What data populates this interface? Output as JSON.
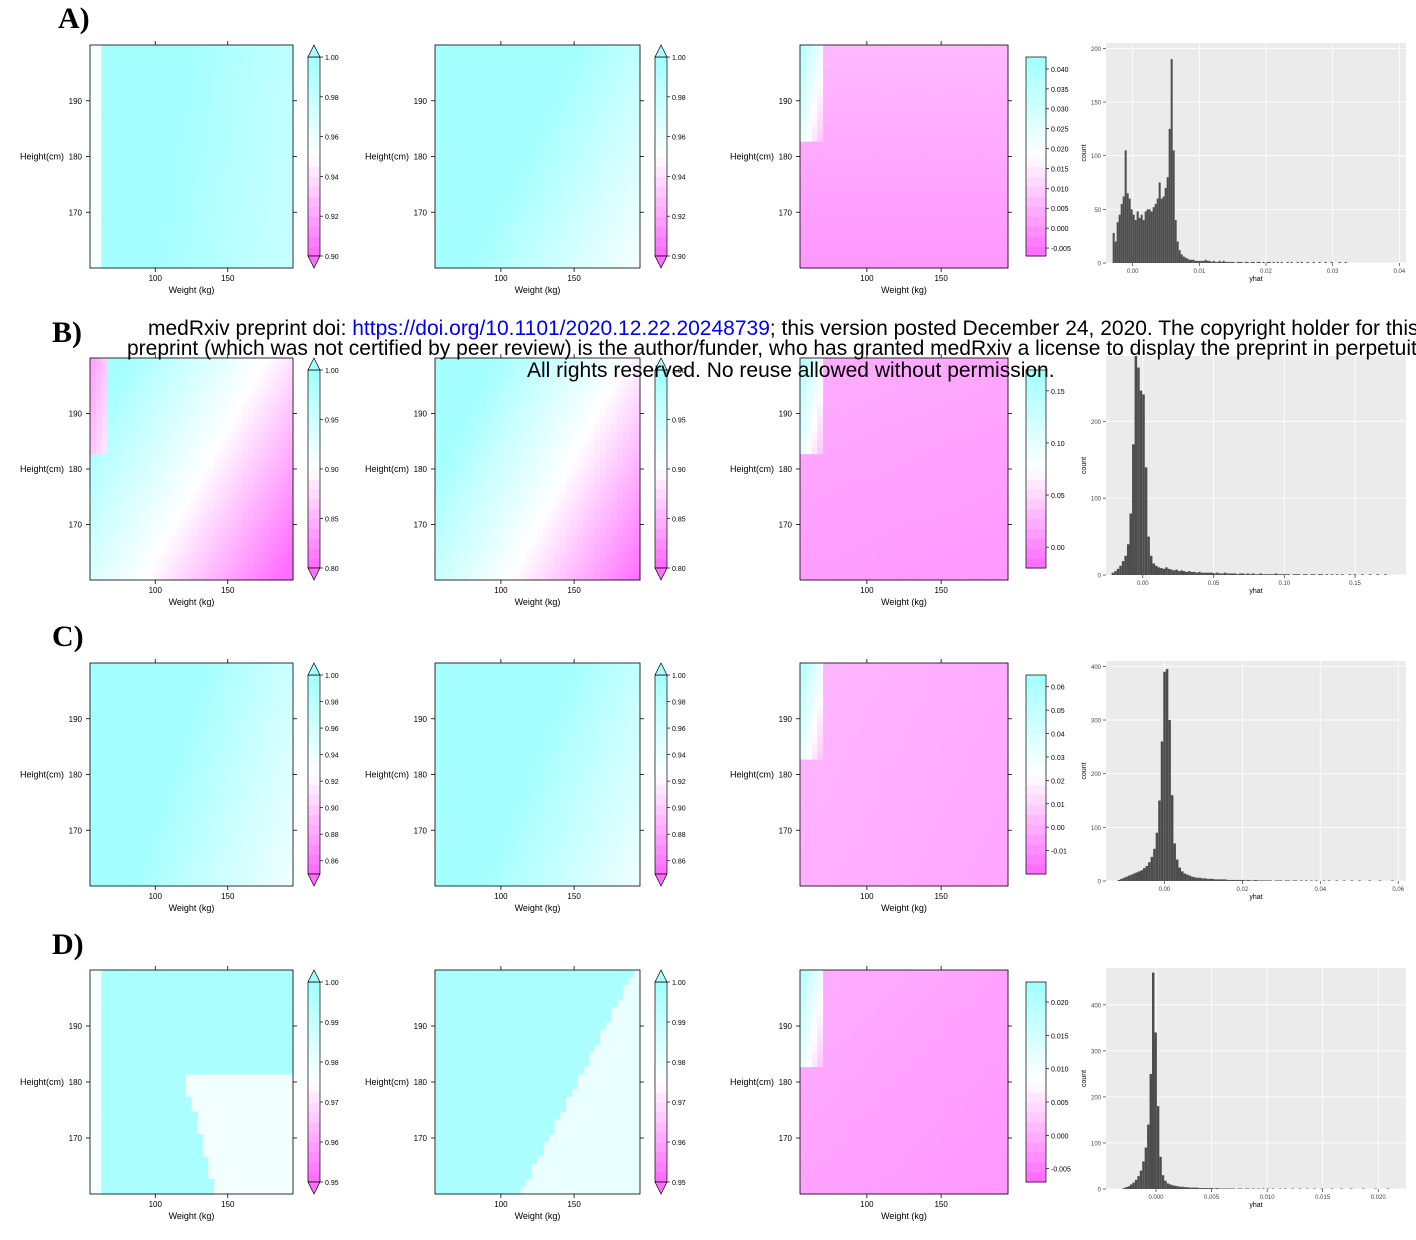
{
  "panel_labels": [
    "A)",
    "B)",
    "C)",
    "D)"
  ],
  "notice": {
    "line1_pre": "medRxiv preprint doi: ",
    "line1_link": "https://doi.org/10.1101/2020.12.22.20248739",
    "line1_post": "; this version posted December 24, 2020. The copyright holder for this",
    "line2": "preprint (which was not certified by peer review) is the author/funder, who has granted medRxiv a license to display the preprint in perpetuity.",
    "line3": "All rights reserved. No reuse allowed without permission."
  },
  "colors": {
    "cyan": "#a6ffff",
    "white": "#ffffff",
    "magenta": "#ff6eff",
    "histogram_bar": "#4d4d4d",
    "histogram_panel": "#ebebeb"
  },
  "chart_data": [
    {
      "row": "A",
      "type": "heatmap",
      "xlabel": "Weight (kg)",
      "ylabel": "Height(cm)",
      "x_ticks": [
        100,
        150
      ],
      "y_ticks": [
        170,
        180,
        190
      ],
      "xlim": [
        55,
        195
      ],
      "ylim": [
        160,
        200
      ],
      "colorkey_ticks": [
        "0.90",
        "0.92",
        "0.94",
        "0.96",
        "0.98",
        "1.00"
      ],
      "zlim": [
        0.9,
        1.0
      ],
      "gradient": {
        "base": 0.975,
        "wx": -0.3,
        "wy": 0.05,
        "left_white_strip": true
      }
    },
    {
      "row": "A",
      "type": "heatmap",
      "xlabel": "Weight (kg)",
      "ylabel": "Height(cm)",
      "x_ticks": [
        100,
        150
      ],
      "y_ticks": [
        170,
        180,
        190
      ],
      "xlim": [
        55,
        195
      ],
      "ylim": [
        160,
        200
      ],
      "colorkey_ticks": [
        "0.90",
        "0.92",
        "0.94",
        "0.96",
        "0.98",
        "1.00"
      ],
      "zlim": [
        0.9,
        1.0
      ],
      "gradient": {
        "base": 0.97,
        "wx": -0.55,
        "wy": 0.3
      }
    },
    {
      "row": "A",
      "type": "heatmap",
      "xlabel": "Weight (kg)",
      "ylabel": "Height(cm)",
      "x_ticks": [
        100,
        150
      ],
      "y_ticks": [
        170,
        180,
        190
      ],
      "xlim": [
        55,
        195
      ],
      "ylim": [
        160,
        200
      ],
      "colorkey_ticks": [
        "-0.005",
        "0.000",
        "0.005",
        "0.010",
        "0.015",
        "0.020",
        "0.025",
        "0.030",
        "0.035",
        "0.040"
      ],
      "zlim": [
        -0.007,
        0.043
      ],
      "gradient": {
        "base": 0.2,
        "wx": 0.0,
        "wy": 0.12,
        "corner_cyan": true
      }
    },
    {
      "row": "A",
      "type": "histogram",
      "xlabel": "yhat",
      "ylabel": "count",
      "x_ticks": [
        "0.00",
        "0.01",
        "0.02",
        "0.03",
        "0.04"
      ],
      "y_ticks": [
        0,
        50,
        100,
        150,
        200
      ],
      "xlim": [
        -0.004,
        0.041
      ],
      "ylim": [
        0,
        205
      ],
      "bins": {
        "start": -0.003,
        "width": 0.0003,
        "counts": [
          28,
          20,
          38,
          45,
          55,
          62,
          105,
          65,
          60,
          50,
          45,
          40,
          48,
          42,
          45,
          40,
          48,
          50,
          50,
          48,
          52,
          55,
          60,
          75,
          60,
          62,
          70,
          80,
          125,
          190,
          105,
          40,
          20,
          12,
          8,
          6,
          5,
          4,
          3,
          3,
          3,
          2,
          2,
          2,
          2,
          2,
          3,
          2,
          2,
          1,
          2,
          1,
          1,
          2,
          1,
          2,
          1,
          1,
          1,
          1,
          1,
          0,
          1,
          1,
          1,
          0,
          1,
          1,
          0,
          1,
          1,
          0,
          1,
          1,
          0,
          1,
          0,
          1,
          1,
          0,
          1,
          0,
          1,
          0,
          1,
          0,
          0,
          1,
          0,
          1,
          0,
          0,
          1,
          0,
          1,
          0,
          0,
          1,
          0,
          0,
          1,
          0,
          0,
          1,
          0,
          0,
          1,
          0,
          0,
          1,
          0,
          0,
          0,
          1,
          0,
          0,
          1
        ]
      }
    },
    {
      "row": "B",
      "type": "heatmap",
      "xlabel": "Weight (kg)",
      "ylabel": "Height(cm)",
      "x_ticks": [
        100,
        150
      ],
      "y_ticks": [
        170,
        180,
        190
      ],
      "xlim": [
        55,
        195
      ],
      "ylim": [
        160,
        200
      ],
      "colorkey_ticks": [
        "0.80",
        "0.85",
        "0.90",
        "0.95",
        "1.00"
      ],
      "zlim": [
        0.8,
        1.0
      ],
      "gradient": {
        "base": 0.55,
        "wx": -0.75,
        "wy": 0.45,
        "top_left_magenta": true
      }
    },
    {
      "row": "B",
      "type": "heatmap",
      "xlabel": "Weight (kg)",
      "ylabel": "Height(cm)",
      "x_ticks": [
        100,
        150
      ],
      "y_ticks": [
        170,
        180,
        190
      ],
      "xlim": [
        55,
        195
      ],
      "ylim": [
        160,
        200
      ],
      "colorkey_ticks": [
        "0.80",
        "0.85",
        "0.90",
        "0.95",
        "1.00"
      ],
      "zlim": [
        0.8,
        1.0
      ],
      "gradient": {
        "base": 0.62,
        "wx": -0.8,
        "wy": 0.45
      }
    },
    {
      "row": "B",
      "type": "heatmap",
      "xlabel": "Weight (kg)",
      "ylabel": "Height(cm)",
      "x_ticks": [
        100,
        150
      ],
      "y_ticks": [
        170,
        180,
        190
      ],
      "xlim": [
        55,
        195
      ],
      "ylim": [
        160,
        200
      ],
      "colorkey_ticks": [
        "0.00",
        "0.05",
        "0.10",
        "0.15"
      ],
      "zlim": [
        -0.02,
        0.17
      ],
      "gradient": {
        "base": 0.18,
        "wx": -0.02,
        "wy": 0.05,
        "corner_cyan": true
      }
    },
    {
      "row": "B",
      "type": "histogram",
      "xlabel": "yhat",
      "ylabel": "count",
      "x_ticks": [
        "0.00",
        "0.05",
        "0.10",
        "0.15"
      ],
      "y_ticks": [
        0,
        100,
        200
      ],
      "xlim": [
        -0.026,
        0.186
      ],
      "ylim": [
        0,
        285
      ],
      "bins": {
        "start": -0.022,
        "width": 0.0018,
        "counts": [
          3,
          5,
          8,
          12,
          18,
          25,
          40,
          80,
          170,
          290,
          270,
          240,
          235,
          140,
          50,
          25,
          15,
          12,
          10,
          9,
          8,
          10,
          8,
          7,
          6,
          7,
          5,
          6,
          5,
          4,
          5,
          4,
          4,
          3,
          4,
          3,
          3,
          3,
          3,
          3,
          2,
          3,
          2,
          2,
          3,
          2,
          2,
          2,
          2,
          1,
          2,
          2,
          1,
          2,
          1,
          2,
          1,
          1,
          2,
          1,
          1,
          1,
          1,
          1,
          2,
          1,
          1,
          1,
          1,
          1,
          0,
          1,
          1,
          1,
          0,
          1,
          1,
          0,
          1,
          1,
          0,
          1,
          1,
          0,
          1,
          0,
          1,
          0,
          1,
          0,
          1,
          0,
          0,
          1,
          0,
          1,
          0,
          0,
          1,
          0,
          0,
          1,
          0,
          0,
          1,
          0,
          0,
          1
        ]
      }
    },
    {
      "row": "C",
      "type": "heatmap",
      "xlabel": "Weight (kg)",
      "ylabel": "Height(cm)",
      "x_ticks": [
        100,
        150
      ],
      "y_ticks": [
        170,
        180,
        190
      ],
      "xlim": [
        55,
        195
      ],
      "ylim": [
        160,
        200
      ],
      "colorkey_ticks": [
        "0.86",
        "0.88",
        "0.90",
        "0.92",
        "0.94",
        "0.96",
        "0.98",
        "1.00"
      ],
      "zlim": [
        0.85,
        1.0
      ],
      "gradient": {
        "base": 0.95,
        "wx": -0.55,
        "wy": 0.2
      }
    },
    {
      "row": "C",
      "type": "heatmap",
      "xlabel": "Weight (kg)",
      "ylabel": "Height(cm)",
      "x_ticks": [
        100,
        150
      ],
      "y_ticks": [
        170,
        180,
        190
      ],
      "xlim": [
        55,
        195
      ],
      "ylim": [
        160,
        200
      ],
      "colorkey_ticks": [
        "0.86",
        "0.88",
        "0.90",
        "0.92",
        "0.94",
        "0.96",
        "0.98",
        "1.00"
      ],
      "zlim": [
        0.85,
        1.0
      ],
      "gradient": {
        "base": 0.98,
        "wx": -0.55,
        "wy": 0.25
      }
    },
    {
      "row": "C",
      "type": "heatmap",
      "xlabel": "Weight (kg)",
      "ylabel": "Height(cm)",
      "x_ticks": [
        100,
        150
      ],
      "y_ticks": [
        170,
        180,
        190
      ],
      "xlim": [
        55,
        195
      ],
      "ylim": [
        160,
        200
      ],
      "colorkey_ticks": [
        "-0.01",
        "0.00",
        "0.01",
        "0.02",
        "0.03",
        "0.04",
        "0.05",
        "0.06"
      ],
      "zlim": [
        -0.02,
        0.065
      ],
      "gradient": {
        "base": 0.22,
        "wx": -0.04,
        "wy": 0.02,
        "corner_cyan": true
      }
    },
    {
      "row": "C",
      "type": "histogram",
      "xlabel": "yhat",
      "ylabel": "count",
      "x_ticks": [
        "0.00",
        "0.02",
        "0.04",
        "0.06"
      ],
      "y_ticks": [
        0,
        100,
        200,
        300,
        400
      ],
      "xlim": [
        -0.015,
        0.062
      ],
      "ylim": [
        0,
        410
      ],
      "bins": {
        "start": -0.012,
        "width": 0.00065,
        "counts": [
          2,
          4,
          6,
          8,
          10,
          12,
          14,
          16,
          18,
          20,
          24,
          28,
          35,
          45,
          60,
          90,
          150,
          260,
          390,
          395,
          300,
          160,
          70,
          40,
          25,
          18,
          14,
          12,
          10,
          8,
          7,
          6,
          6,
          5,
          5,
          4,
          4,
          4,
          3,
          3,
          3,
          3,
          3,
          2,
          2,
          2,
          2,
          2,
          2,
          2,
          1,
          2,
          1,
          1,
          2,
          1,
          1,
          1,
          1,
          1,
          1,
          0,
          1,
          1,
          1,
          0,
          1,
          1,
          0,
          1,
          1,
          0,
          1,
          0,
          1,
          0,
          1,
          0,
          1,
          0,
          0,
          1,
          0,
          1,
          0,
          0,
          1,
          0,
          0,
          1,
          0,
          0,
          1,
          0,
          0,
          1,
          0,
          0,
          0,
          1,
          0,
          0,
          0,
          1,
          0,
          0,
          0,
          0,
          1
        ]
      }
    },
    {
      "row": "D",
      "type": "heatmap",
      "xlabel": "Weight (kg)",
      "ylabel": "Height(cm)",
      "x_ticks": [
        100,
        150
      ],
      "y_ticks": [
        170,
        180,
        190
      ],
      "xlim": [
        55,
        195
      ],
      "ylim": [
        160,
        200
      ],
      "colorkey_ticks": [
        "0.95",
        "0.96",
        "0.97",
        "0.98",
        "0.99",
        "1.00"
      ],
      "zlim": [
        0.95,
        1.0
      ],
      "gradient": {
        "base": 0.97,
        "wx": 0.0,
        "wy": 0.0,
        "step_region": "bottom-right",
        "left_white_strip": true
      }
    },
    {
      "row": "D",
      "type": "heatmap",
      "xlabel": "Weight (kg)",
      "ylabel": "Height(cm)",
      "x_ticks": [
        100,
        150
      ],
      "y_ticks": [
        170,
        180,
        190
      ],
      "xlim": [
        55,
        195
      ],
      "ylim": [
        160,
        200
      ],
      "colorkey_ticks": [
        "0.95",
        "0.96",
        "0.97",
        "0.98",
        "0.99",
        "1.00"
      ],
      "zlim": [
        0.95,
        1.0
      ],
      "gradient": {
        "base": 0.97,
        "wx": 0.0,
        "wy": 0.0,
        "step_region": "diagonal"
      }
    },
    {
      "row": "D",
      "type": "heatmap",
      "xlabel": "Weight (kg)",
      "ylabel": "Height(cm)",
      "x_ticks": [
        100,
        150
      ],
      "y_ticks": [
        170,
        180,
        190
      ],
      "xlim": [
        55,
        195
      ],
      "ylim": [
        160,
        200
      ],
      "colorkey_ticks": [
        "-0.005",
        "0.000",
        "0.005",
        "0.010",
        "0.015",
        "0.020"
      ],
      "zlim": [
        -0.007,
        0.023
      ],
      "gradient": {
        "base": 0.18,
        "wx": -0.04,
        "wy": 0.04,
        "corner_cyan": true
      }
    },
    {
      "row": "D",
      "type": "histogram",
      "xlabel": "yhat",
      "ylabel": "count",
      "x_ticks": [
        "0.000",
        "0.005",
        "0.010",
        "0.015",
        "0.020"
      ],
      "y_ticks": [
        0,
        100,
        200,
        300,
        400
      ],
      "xlim": [
        -0.0045,
        0.0225
      ],
      "ylim": [
        0,
        480
      ],
      "bins": {
        "start": -0.003,
        "width": 0.00022,
        "counts": [
          2,
          4,
          6,
          10,
          14,
          20,
          28,
          40,
          60,
          90,
          140,
          250,
          470,
          340,
          180,
          70,
          30,
          18,
          12,
          10,
          8,
          7,
          6,
          5,
          5,
          4,
          4,
          3,
          3,
          3,
          3,
          2,
          2,
          2,
          2,
          2,
          2,
          1,
          2,
          1,
          1,
          1,
          1,
          1,
          1,
          1,
          0,
          1,
          1,
          0,
          1,
          1,
          0,
          1,
          0,
          1,
          0,
          1,
          0,
          1,
          0,
          1,
          0,
          0,
          1,
          0,
          1,
          0,
          0,
          1,
          0,
          0,
          1,
          0,
          0,
          1,
          0,
          0,
          1,
          0,
          0,
          1,
          0,
          0,
          0,
          1,
          0,
          0,
          0,
          1,
          0,
          0,
          0,
          1,
          0,
          0,
          0,
          0,
          1,
          0,
          0,
          0,
          0,
          1,
          0,
          0,
          0,
          0,
          1
        ]
      }
    }
  ]
}
